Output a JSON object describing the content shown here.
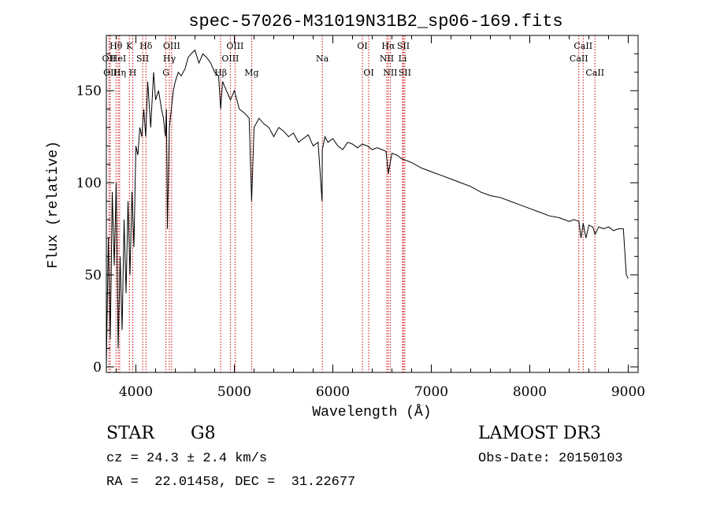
{
  "chart_data": {
    "type": "line",
    "title": "spec-57026-M31019N31B2_sp06-169.fits",
    "xlabel": "Wavelength (Å)",
    "ylabel": "Flux (relative)",
    "xlim": [
      3700,
      9100
    ],
    "ylim": [
      -3,
      180
    ],
    "grid": false,
    "xticks": [
      4000,
      5000,
      6000,
      7000,
      8000,
      9000
    ],
    "yticks": [
      0,
      50,
      100,
      150
    ],
    "series": [
      {
        "name": "flux",
        "x": [
          3700,
          3720,
          3740,
          3760,
          3780,
          3800,
          3820,
          3840,
          3860,
          3880,
          3900,
          3920,
          3940,
          3960,
          3980,
          4000,
          4020,
          4040,
          4060,
          4080,
          4100,
          4120,
          4150,
          4180,
          4200,
          4230,
          4260,
          4280,
          4300,
          4310,
          4320,
          4340,
          4360,
          4380,
          4400,
          4430,
          4460,
          4500,
          4530,
          4560,
          4600,
          4640,
          4680,
          4720,
          4760,
          4800,
          4840,
          4861,
          4880,
          4920,
          4960,
          5000,
          5050,
          5100,
          5150,
          5175,
          5200,
          5250,
          5300,
          5350,
          5400,
          5450,
          5500,
          5550,
          5600,
          5650,
          5700,
          5750,
          5800,
          5850,
          5890,
          5893,
          5920,
          5950,
          6000,
          6050,
          6100,
          6150,
          6200,
          6250,
          6300,
          6350,
          6400,
          6450,
          6500,
          6540,
          6563,
          6600,
          6650,
          6700,
          6750,
          6800,
          6900,
          7000,
          7100,
          7200,
          7300,
          7400,
          7500,
          7600,
          7700,
          7800,
          7900,
          8000,
          8100,
          8200,
          8300,
          8350,
          8400,
          8450,
          8498,
          8520,
          8542,
          8570,
          8600,
          8640,
          8662,
          8700,
          8750,
          8800,
          8850,
          8900,
          8950,
          8980,
          9000
        ],
        "values": [
          0,
          70,
          15,
          95,
          55,
          100,
          10,
          60,
          20,
          80,
          40,
          90,
          50,
          95,
          65,
          120,
          115,
          130,
          125,
          140,
          125,
          155,
          130,
          160,
          145,
          150,
          140,
          135,
          125,
          140,
          75,
          130,
          140,
          150,
          155,
          160,
          158,
          162,
          168,
          170,
          172,
          165,
          170,
          168,
          165,
          160,
          158,
          140,
          155,
          150,
          145,
          150,
          140,
          138,
          135,
          90,
          130,
          135,
          132,
          130,
          125,
          130,
          128,
          125,
          127,
          122,
          124,
          126,
          120,
          122,
          90,
          118,
          125,
          122,
          124,
          120,
          118,
          122,
          121,
          119,
          121,
          120,
          118,
          119,
          118,
          117,
          105,
          116,
          115,
          113,
          112,
          111,
          108,
          106,
          104,
          102,
          100,
          98,
          95,
          93,
          92,
          90,
          88,
          86,
          84,
          82,
          81,
          80,
          79,
          80,
          79,
          70,
          78,
          70,
          77,
          76,
          72,
          76,
          75,
          76,
          74,
          75,
          75,
          50,
          48
        ]
      }
    ],
    "lines": [
      {
        "label": "Hθ",
        "x": 3798,
        "row": 1
      },
      {
        "label": "OII",
        "x": 3727,
        "row": 2
      },
      {
        "label": "OII",
        "x": 3740,
        "row": 3
      },
      {
        "label": "K",
        "x": 3934,
        "row": 1
      },
      {
        "label": "HeI",
        "x": 3820,
        "row": 2
      },
      {
        "label": "Hη",
        "x": 3835,
        "row": 3
      },
      {
        "label": "H",
        "x": 3968,
        "row": 3
      },
      {
        "label": "SII",
        "x": 4069,
        "row": 2
      },
      {
        "label": "Hδ",
        "x": 4102,
        "row": 1
      },
      {
        "label": "OIII",
        "x": 4363,
        "row": 1
      },
      {
        "label": "Hγ",
        "x": 4340,
        "row": 2
      },
      {
        "label": "G",
        "x": 4305,
        "row": 3
      },
      {
        "label": "Hβ",
        "x": 4861,
        "row": 3
      },
      {
        "label": "OIII",
        "x": 5007,
        "row": 1
      },
      {
        "label": "OIII",
        "x": 4959,
        "row": 2
      },
      {
        "label": "Mg",
        "x": 5175,
        "row": 3
      },
      {
        "label": "Na",
        "x": 5893,
        "row": 2
      },
      {
        "label": "OI",
        "x": 6300,
        "row": 1
      },
      {
        "label": "OI",
        "x": 6364,
        "row": 3
      },
      {
        "label": "Hα",
        "x": 6563,
        "row": 1
      },
      {
        "label": "SII",
        "x": 6716,
        "row": 1
      },
      {
        "label": "NII",
        "x": 6548,
        "row": 2
      },
      {
        "label": "Li",
        "x": 6708,
        "row": 2
      },
      {
        "label": "NII",
        "x": 6583,
        "row": 3
      },
      {
        "label": "SII",
        "x": 6731,
        "row": 3
      },
      {
        "label": "CaII",
        "x": 8542,
        "row": 1
      },
      {
        "label": "CaII",
        "x": 8498,
        "row": 2
      },
      {
        "label": "CaII",
        "x": 8662,
        "row": 3
      }
    ]
  },
  "info": {
    "object_class": "STAR",
    "subclass": "G8",
    "redshift": "cz = 24.3 ± 2.4 km/s",
    "coords": "RA =  22.01458, DEC =  31.22677",
    "survey": "LAMOST DR3",
    "obs_date": "Obs-Date: 20150103"
  }
}
